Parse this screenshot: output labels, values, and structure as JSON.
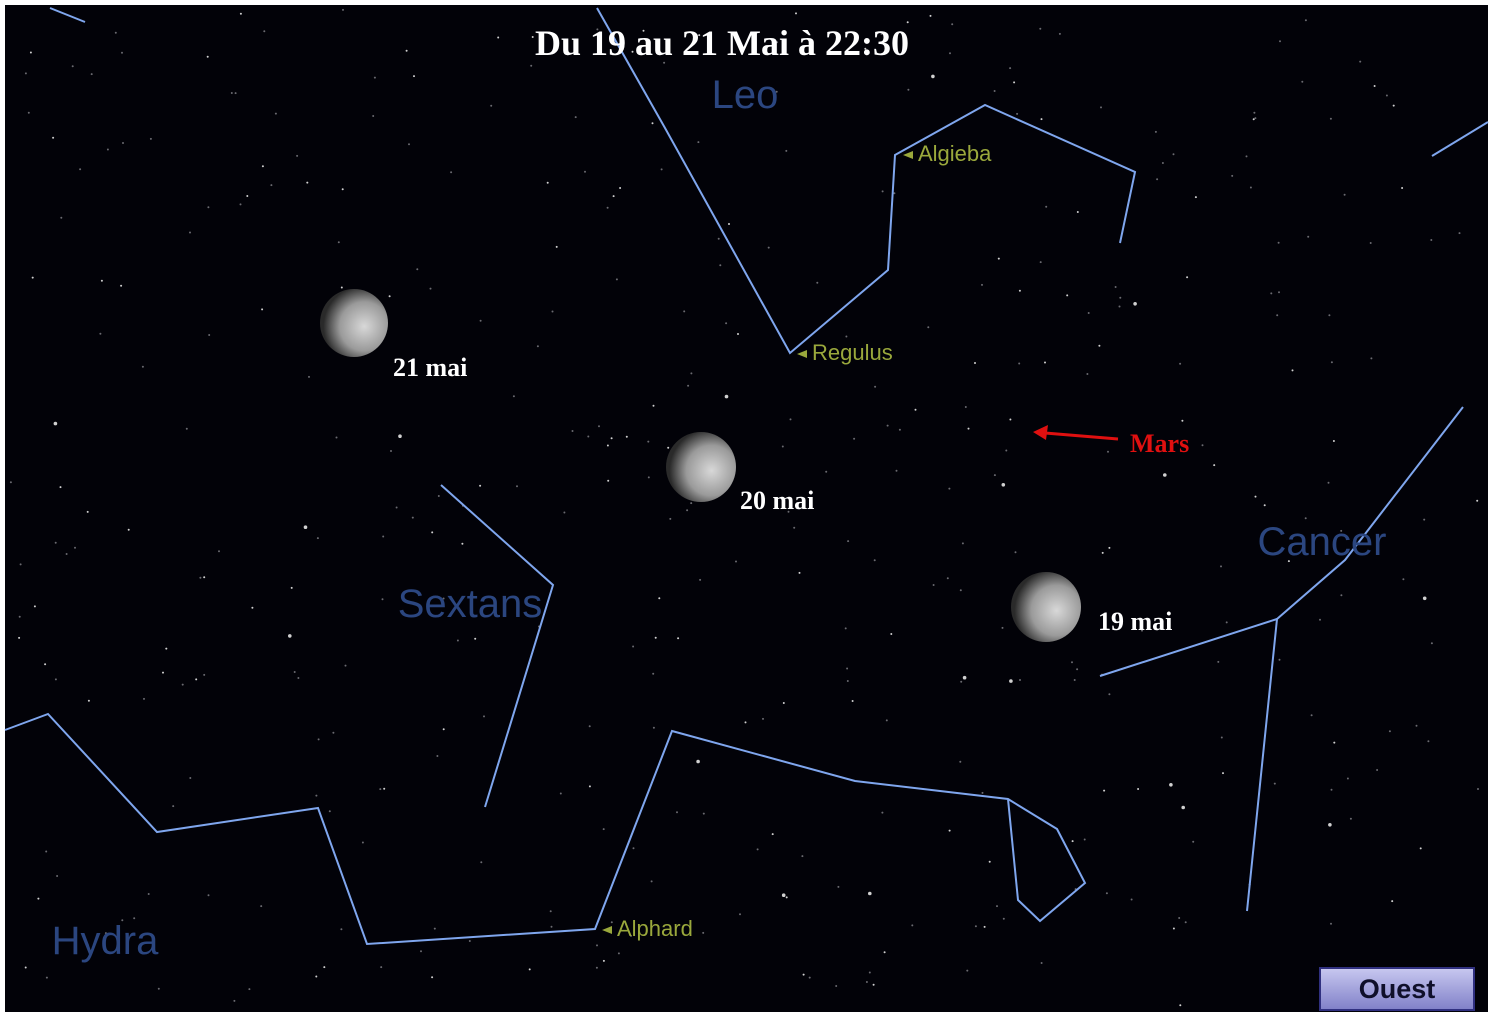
{
  "title": "Du 19 au 21 Mai à 22:30",
  "constellations": [
    "Leo",
    "Sextans",
    "Cancer",
    "Hydra"
  ],
  "stars": [
    "Algieba",
    "Regulus",
    "Alphard"
  ],
  "moons": [
    {
      "label": "21 mai"
    },
    {
      "label": "20 mai"
    },
    {
      "label": "19 mai"
    }
  ],
  "planet": {
    "label": "Mars"
  },
  "button": {
    "label": "Ouest"
  }
}
